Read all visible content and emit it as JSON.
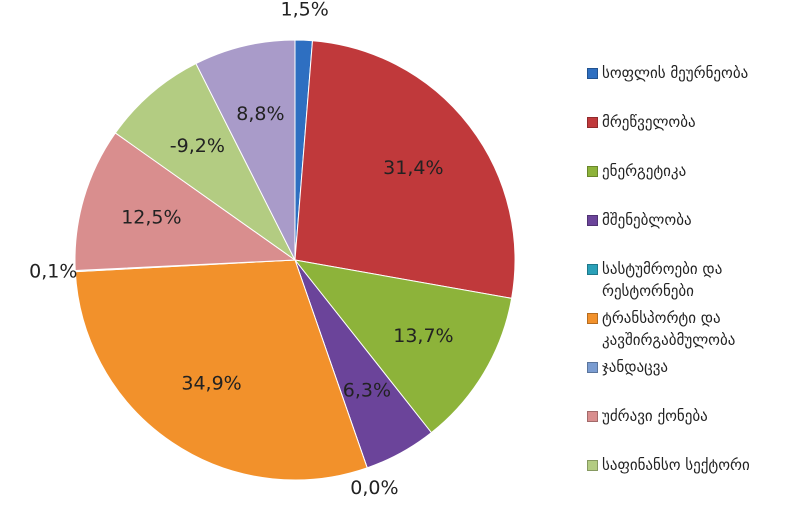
{
  "chart_data": {
    "type": "pie",
    "categories": [
      "სოფლის მეურნეობა",
      "მრეწველობა",
      "ენერგეტიკა",
      "მშენებლობა",
      "სასტუმროები და რესტორნები",
      "ტრანსპორტი და კავშირგაბმულობა",
      "ჯანდაცვა",
      "უძრავი ქონება",
      "საფინანსო სექტორი",
      null
    ],
    "values": [
      1.5,
      31.4,
      13.7,
      6.3,
      0.0,
      34.9,
      0.1,
      12.5,
      -9.2,
      8.8
    ],
    "value_labels": [
      "1,5%",
      "31,4%",
      "13,7%",
      "6,3%",
      "0,0%",
      "34,9%",
      "0,1%",
      "12,5%",
      "-9,2%",
      "8,8%"
    ],
    "colors": [
      "#2e6fc1",
      "#c0393b",
      "#8db33a",
      "#6b449a",
      "#2aa0b8",
      "#f2912b",
      "#7a9cd1",
      "#d98e8e",
      "#b3cc82",
      "#a99bc9"
    ],
    "legend": "right"
  }
}
